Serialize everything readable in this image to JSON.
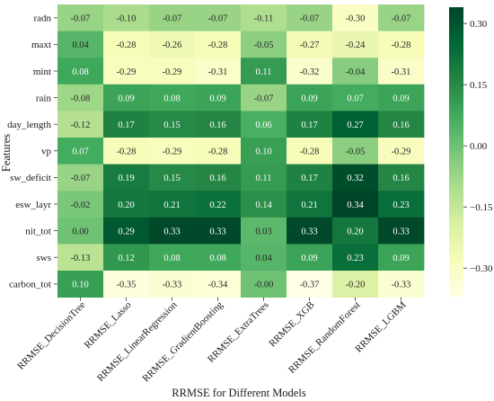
{
  "chart_data": {
    "type": "heatmap",
    "title": "",
    "xlabel": "RRMSE for Different Models",
    "ylabel": "Features",
    "x": [
      "RRMSE_DecisionTree",
      "RRMSE_Lasso",
      "RRMSE_LinearRegression",
      "RRMSE_GradientBoosting",
      "RRMSE_ExtraTrees",
      "RRMSE_XGB",
      "RRMSE_RandomForest",
      "RRMSE_LGBM"
    ],
    "y": [
      "radn",
      "maxt",
      "mint",
      "rain",
      "day_length",
      "vp",
      "sw_deficit",
      "esw_layr",
      "nit_tot",
      "sws",
      "carbon_tot"
    ],
    "values": [
      [
        -0.07,
        -0.1,
        -0.07,
        -0.07,
        -0.11,
        -0.07,
        -0.3,
        -0.07
      ],
      [
        0.04,
        -0.28,
        -0.26,
        -0.28,
        -0.05,
        -0.27,
        -0.24,
        -0.28
      ],
      [
        0.08,
        -0.29,
        -0.29,
        -0.31,
        0.11,
        -0.32,
        -0.04,
        -0.31
      ],
      [
        -0.08,
        0.09,
        0.08,
        0.09,
        -0.07,
        0.09,
        0.07,
        0.09
      ],
      [
        -0.12,
        0.17,
        0.15,
        0.16,
        0.06,
        0.17,
        0.27,
        0.16
      ],
      [
        0.07,
        -0.28,
        -0.29,
        -0.28,
        0.1,
        -0.28,
        -0.05,
        -0.29
      ],
      [
        -0.07,
        0.19,
        0.15,
        0.16,
        0.11,
        0.17,
        0.32,
        0.16
      ],
      [
        -0.02,
        0.2,
        0.21,
        0.22,
        0.14,
        0.21,
        0.34,
        0.23
      ],
      [
        0.0,
        0.29,
        0.33,
        0.33,
        0.03,
        0.33,
        0.2,
        0.33
      ],
      [
        -0.13,
        0.12,
        0.08,
        0.08,
        0.04,
        0.09,
        0.23,
        0.09
      ],
      [
        0.1,
        -0.35,
        -0.33,
        -0.34,
        -0.0,
        -0.37,
        -0.2,
        -0.33
      ]
    ],
    "value_labels": [
      [
        "-0.07",
        "-0.10",
        "-0.07",
        "-0.07",
        "-0.11",
        "-0.07",
        "-0.30",
        "-0.07"
      ],
      [
        "0.04",
        "-0.28",
        "-0.26",
        "-0.28",
        "-0.05",
        "-0.27",
        "-0.24",
        "-0.28"
      ],
      [
        "0.08",
        "-0.29",
        "-0.29",
        "-0.31",
        "0.11",
        "-0.32",
        "-0.04",
        "-0.31"
      ],
      [
        "-0.08",
        "0.09",
        "0.08",
        "0.09",
        "-0.07",
        "0.09",
        "0.07",
        "0.09"
      ],
      [
        "-0.12",
        "0.17",
        "0.15",
        "0.16",
        "0.06",
        "0.17",
        "0.27",
        "0.16"
      ],
      [
        "0.07",
        "-0.28",
        "-0.29",
        "-0.28",
        "0.10",
        "-0.28",
        "-0.05",
        "-0.29"
      ],
      [
        "-0.07",
        "0.19",
        "0.15",
        "0.16",
        "0.11",
        "0.17",
        "0.32",
        "0.16"
      ],
      [
        "-0.02",
        "0.20",
        "0.21",
        "0.22",
        "0.14",
        "0.21",
        "0.34",
        "0.23"
      ],
      [
        "0.00",
        "0.29",
        "0.33",
        "0.33",
        "0.03",
        "0.33",
        "0.20",
        "0.33"
      ],
      [
        "-0.13",
        "0.12",
        "0.08",
        "0.08",
        "0.04",
        "0.09",
        "0.23",
        "0.09"
      ],
      [
        "0.10",
        "-0.35",
        "-0.33",
        "-0.34",
        "-0.00",
        "-0.37",
        "-0.20",
        "-0.33"
      ]
    ],
    "colorbar": {
      "range": [
        -0.37,
        0.34
      ],
      "ticks": [
        0.3,
        0.15,
        0.0,
        -0.15,
        -0.3
      ],
      "tick_labels": [
        "0.30",
        "0.15",
        "0.00",
        "−0.15",
        "−0.30"
      ]
    },
    "colormap": {
      "name": "YlGn",
      "stops": [
        "#ffffe5",
        "#f7fcb9",
        "#d9f0a3",
        "#addd8e",
        "#78c679",
        "#41ab5d",
        "#238443",
        "#006837",
        "#004529"
      ]
    },
    "grid": false,
    "legend": "colorbar-right"
  }
}
